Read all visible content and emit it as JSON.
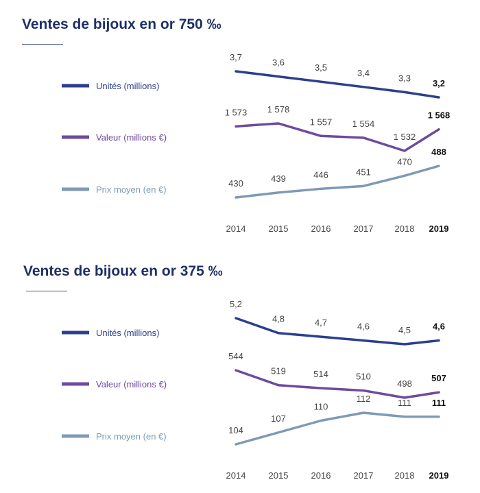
{
  "years": [
    "2014",
    "2015",
    "2016",
    "2017",
    "2018",
    "2019"
  ],
  "colors": {
    "units": "#2b3f8f",
    "value": "#6e4a9e",
    "price": "#7e9ab5",
    "title": "#1e2f66",
    "rule": "#3a4d8f",
    "text": "#444444"
  },
  "sections": [
    {
      "title": "Ventes de bijoux en or 750 ‰",
      "series": [
        {
          "key": "units",
          "name": "Unités (millions)",
          "values": [
            3.7,
            3.6,
            3.5,
            3.4,
            3.3,
            3.2
          ],
          "labels": [
            "3,7",
            "3,6",
            "3,5",
            "3,4",
            "3,3",
            "3,2"
          ]
        },
        {
          "key": "value",
          "name": "Valeur (millions €)",
          "values": [
            1573,
            1578,
            1557,
            1554,
            1532,
            1568
          ],
          "labels": [
            "1 573",
            "1 578",
            "1 557",
            "1 554",
            "1 532",
            "1 568"
          ]
        },
        {
          "key": "price",
          "name": "Prix moyen (en €)",
          "values": [
            430,
            439,
            446,
            451,
            470,
            488
          ],
          "labels": [
            "430",
            "439",
            "446",
            "451",
            "470",
            "488"
          ]
        }
      ]
    },
    {
      "title": "Ventes de bijoux en or 375 ‰",
      "series": [
        {
          "key": "units",
          "name": "Unités (millions)",
          "values": [
            5.2,
            4.8,
            4.7,
            4.6,
            4.5,
            4.6
          ],
          "labels": [
            "5,2",
            "4,8",
            "4,7",
            "4,6",
            "4,5",
            "4,6"
          ]
        },
        {
          "key": "value",
          "name": "Valeur (millions €)",
          "values": [
            544,
            519,
            514,
            510,
            498,
            507
          ],
          "labels": [
            "544",
            "519",
            "514",
            "510",
            "498",
            "507"
          ]
        },
        {
          "key": "price",
          "name": "Prix moyen (en €)",
          "values": [
            104,
            107,
            110,
            112,
            111,
            111
          ],
          "labels": [
            "104",
            "107",
            "110",
            "112",
            "111",
            "111"
          ]
        }
      ]
    }
  ],
  "chart_data": [
    {
      "type": "line",
      "title": "Ventes de bijoux en or 750 ‰",
      "x": [
        "2014",
        "2015",
        "2016",
        "2017",
        "2018",
        "2019"
      ],
      "series": [
        {
          "name": "Unités (millions)",
          "values": [
            3.7,
            3.6,
            3.5,
            3.4,
            3.3,
            3.2
          ]
        },
        {
          "name": "Valeur (millions €)",
          "values": [
            1573,
            1578,
            1557,
            1554,
            1532,
            1568
          ]
        },
        {
          "name": "Prix moyen (en €)",
          "values": [
            430,
            439,
            446,
            451,
            470,
            488
          ]
        }
      ],
      "legend": "left",
      "grid": false
    },
    {
      "type": "line",
      "title": "Ventes de bijoux en or 375 ‰",
      "x": [
        "2014",
        "2015",
        "2016",
        "2017",
        "2018",
        "2019"
      ],
      "series": [
        {
          "name": "Unités (millions)",
          "values": [
            5.2,
            4.8,
            4.7,
            4.6,
            4.5,
            4.6
          ]
        },
        {
          "name": "Valeur (millions €)",
          "values": [
            544,
            519,
            514,
            510,
            498,
            507
          ]
        },
        {
          "name": "Prix moyen (en €)",
          "values": [
            104,
            107,
            110,
            112,
            111,
            111
          ]
        }
      ],
      "legend": "left",
      "grid": false
    }
  ]
}
